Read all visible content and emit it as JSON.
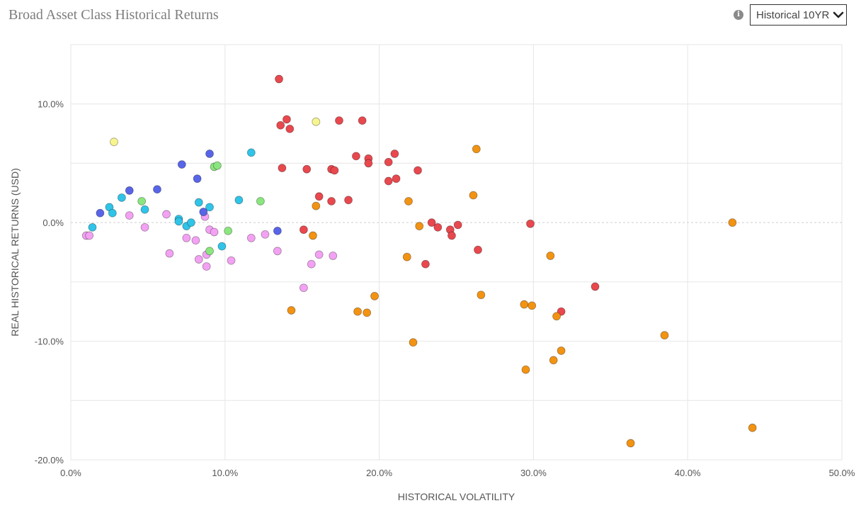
{
  "header": {
    "title": "Broad Asset Class Historical Returns",
    "dropdown_label": "Historical 10YR"
  },
  "icons": {
    "info": "info-icon",
    "dropdown": "chevron-down-icon"
  },
  "colors": {
    "red": "#e8484e",
    "orange": "#f39312",
    "pink": "#f3a1f3",
    "cyan": "#2fc4e8",
    "blue": "#5865e8",
    "green": "#8ae67e",
    "yellow": "#f7f58e"
  },
  "chart_data": {
    "type": "scatter",
    "title": "Broad Asset Class Historical Returns",
    "xlabel": "HISTORICAL VOLATILITY",
    "ylabel": "REAL HISTORICAL RETURNS (USD)",
    "xlim": [
      0,
      50
    ],
    "ylim": [
      -20,
      15
    ],
    "xticks": [
      "0.0%",
      "10.0%",
      "20.0%",
      "30.0%",
      "40.0%",
      "50.0%"
    ],
    "yticks": [
      "10.0%",
      "0.0%",
      "-10.0%",
      "-20.0%"
    ],
    "grid": true,
    "series": [
      {
        "color": "red",
        "points": [
          [
            13.5,
            12.1
          ],
          [
            13.6,
            8.2
          ],
          [
            14.0,
            8.7
          ],
          [
            14.2,
            7.9
          ],
          [
            13.7,
            4.6
          ],
          [
            15.3,
            4.5
          ],
          [
            16.9,
            4.5
          ],
          [
            17.1,
            4.4
          ],
          [
            17.4,
            8.6
          ],
          [
            18.9,
            8.6
          ],
          [
            18.5,
            5.6
          ],
          [
            19.3,
            5.4
          ],
          [
            19.3,
            5.0
          ],
          [
            20.6,
            5.1
          ],
          [
            21.0,
            5.8
          ],
          [
            22.5,
            4.4
          ],
          [
            20.6,
            3.5
          ],
          [
            21.1,
            3.7
          ],
          [
            16.1,
            2.2
          ],
          [
            16.9,
            1.8
          ],
          [
            18.0,
            1.9
          ],
          [
            15.1,
            -0.6
          ],
          [
            23.4,
            0.0
          ],
          [
            23.8,
            -0.4
          ],
          [
            24.6,
            -0.6
          ],
          [
            24.7,
            -1.1
          ],
          [
            25.1,
            -0.2
          ],
          [
            29.8,
            -0.1
          ],
          [
            26.4,
            -2.3
          ],
          [
            23.0,
            -3.5
          ],
          [
            34.0,
            -5.4
          ],
          [
            31.8,
            -7.5
          ]
        ]
      },
      {
        "color": "orange",
        "points": [
          [
            26.3,
            6.2
          ],
          [
            26.1,
            2.3
          ],
          [
            21.9,
            1.8
          ],
          [
            15.9,
            1.4
          ],
          [
            22.6,
            -0.3
          ],
          [
            15.7,
            -1.1
          ],
          [
            21.8,
            -2.9
          ],
          [
            31.1,
            -2.8
          ],
          [
            42.9,
            0.0
          ],
          [
            19.7,
            -6.2
          ],
          [
            26.6,
            -6.1
          ],
          [
            29.4,
            -6.9
          ],
          [
            29.9,
            -7.0
          ],
          [
            14.3,
            -7.4
          ],
          [
            18.6,
            -7.5
          ],
          [
            19.2,
            -7.6
          ],
          [
            31.5,
            -7.9
          ],
          [
            22.2,
            -10.1
          ],
          [
            38.5,
            -9.5
          ],
          [
            31.8,
            -10.8
          ],
          [
            31.3,
            -11.6
          ],
          [
            29.5,
            -12.4
          ],
          [
            44.2,
            -17.3
          ],
          [
            36.3,
            -18.6
          ]
        ]
      },
      {
        "color": "pink",
        "points": [
          [
            1.0,
            -1.1
          ],
          [
            1.2,
            -1.1
          ],
          [
            3.8,
            0.6
          ],
          [
            4.8,
            -0.4
          ],
          [
            6.2,
            0.7
          ],
          [
            6.4,
            -2.6
          ],
          [
            7.5,
            -1.3
          ],
          [
            8.1,
            -1.5
          ],
          [
            8.3,
            -3.1
          ],
          [
            8.7,
            0.5
          ],
          [
            8.8,
            -2.7
          ],
          [
            8.8,
            -3.7
          ],
          [
            9.0,
            -0.6
          ],
          [
            9.3,
            -0.8
          ],
          [
            10.4,
            -3.2
          ],
          [
            11.7,
            -1.3
          ],
          [
            12.6,
            -1.0
          ],
          [
            13.4,
            -2.4
          ],
          [
            15.1,
            -5.5
          ],
          [
            15.6,
            -3.5
          ],
          [
            16.1,
            -2.7
          ],
          [
            17.0,
            -2.8
          ]
        ]
      },
      {
        "color": "cyan",
        "points": [
          [
            1.4,
            -0.4
          ],
          [
            2.5,
            1.3
          ],
          [
            2.7,
            0.8
          ],
          [
            3.3,
            2.1
          ],
          [
            4.8,
            1.1
          ],
          [
            7.0,
            0.3
          ],
          [
            7.0,
            0.1
          ],
          [
            7.5,
            -0.3
          ],
          [
            7.8,
            0.0
          ],
          [
            8.3,
            1.7
          ],
          [
            9.0,
            1.3
          ],
          [
            9.8,
            -2.0
          ],
          [
            10.9,
            1.9
          ],
          [
            11.7,
            5.9
          ]
        ]
      },
      {
        "color": "blue",
        "points": [
          [
            1.9,
            0.8
          ],
          [
            3.8,
            2.7
          ],
          [
            5.6,
            2.8
          ],
          [
            7.2,
            4.9
          ],
          [
            8.2,
            3.7
          ],
          [
            8.6,
            0.9
          ],
          [
            9.0,
            5.8
          ],
          [
            13.4,
            -0.7
          ]
        ]
      },
      {
        "color": "green",
        "points": [
          [
            4.6,
            1.8
          ],
          [
            9.0,
            -2.4
          ],
          [
            9.3,
            4.7
          ],
          [
            9.5,
            4.8
          ],
          [
            10.2,
            -0.7
          ],
          [
            12.3,
            1.8
          ]
        ]
      },
      {
        "color": "yellow",
        "points": [
          [
            2.8,
            6.8
          ],
          [
            15.9,
            8.5
          ]
        ]
      }
    ]
  }
}
